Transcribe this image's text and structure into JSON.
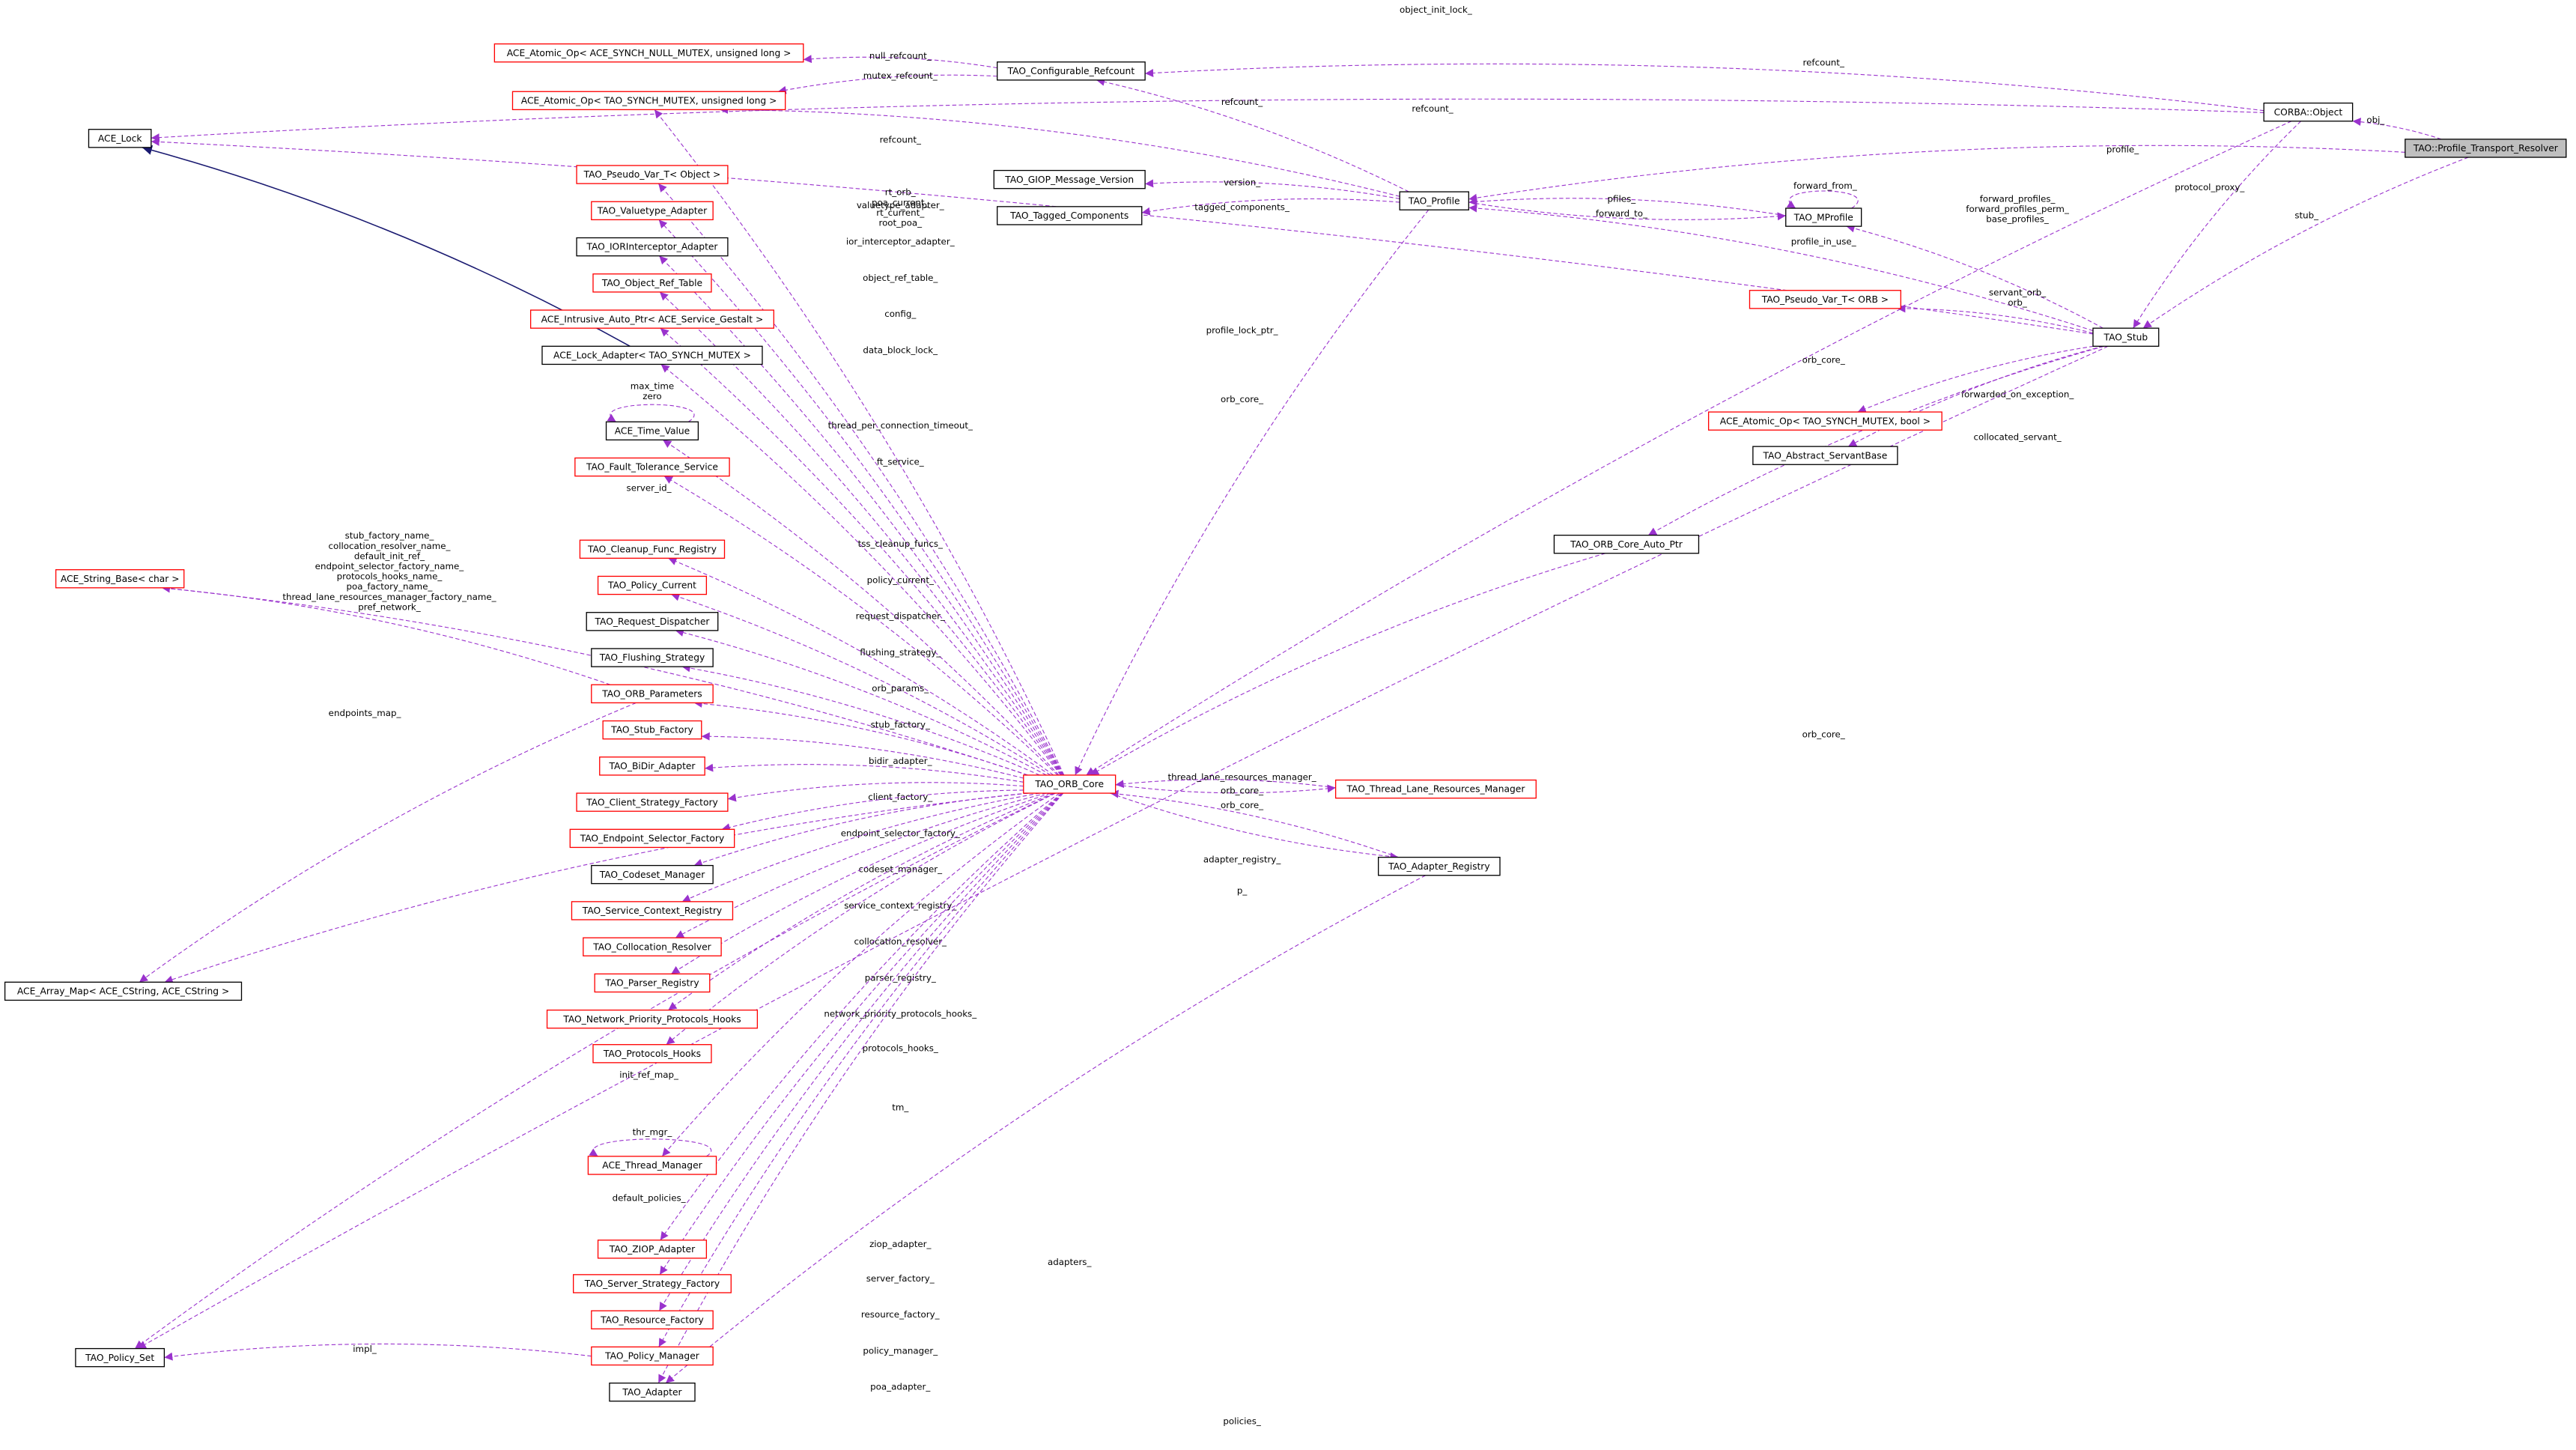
{
  "nodes": [
    {
      "label": "TAO::Profile_Transport_Resolver",
      "border": "#000000",
      "fill": "#bfbfbf"
    },
    {
      "label": "CORBA::Object",
      "border": "#000000"
    },
    {
      "label": "TAO_Stub",
      "border": "#000000"
    },
    {
      "label": "TAO_Profile",
      "border": "#000000"
    },
    {
      "label": "TAO_MProfile",
      "border": "#000000"
    },
    {
      "label": "TAO_Configurable_Refcount",
      "border": "#000000"
    },
    {
      "label": "ACE_Atomic_Op< ACE_SYNCH_NULL_MUTEX, unsigned long >",
      "border": "#ff0000"
    },
    {
      "label": "ACE_Atomic_Op< TAO_SYNCH_MUTEX, unsigned long >",
      "border": "#ff0000"
    },
    {
      "label": "ACE_Lock",
      "border": "#000000"
    },
    {
      "label": "TAO_GIOP_Message_Version",
      "border": "#000000"
    },
    {
      "label": "TAO_Tagged_Components",
      "border": "#000000"
    },
    {
      "label": "TAO_Pseudo_Var_T< ORB >",
      "border": "#ff0000"
    },
    {
      "label": "ACE_Atomic_Op< TAO_SYNCH_MUTEX, bool >",
      "border": "#ff0000"
    },
    {
      "label": "TAO_Abstract_ServantBase",
      "border": "#000000"
    },
    {
      "label": "TAO_ORB_Core_Auto_Ptr",
      "border": "#000000"
    },
    {
      "label": "TAO_ORB_Core",
      "border": "#ff0000"
    },
    {
      "label": "TAO_Thread_Lane_Resources_Manager",
      "border": "#ff0000"
    },
    {
      "label": "TAO_Adapter_Registry",
      "border": "#000000"
    },
    {
      "label": "TAO_Pseudo_Var_T< Object >",
      "border": "#ff0000"
    },
    {
      "label": "TAO_Valuetype_Adapter",
      "border": "#ff0000"
    },
    {
      "label": "TAO_IORInterceptor_Adapter",
      "border": "#000000"
    },
    {
      "label": "TAO_Object_Ref_Table",
      "border": "#ff0000"
    },
    {
      "label": "ACE_Intrusive_Auto_Ptr< ACE_Service_Gestalt >",
      "border": "#ff0000"
    },
    {
      "label": "ACE_Lock_Adapter< TAO_SYNCH_MUTEX >",
      "border": "#000000"
    },
    {
      "label": "ACE_Time_Value",
      "border": "#000000"
    },
    {
      "label": "TAO_Fault_Tolerance_Service",
      "border": "#ff0000"
    },
    {
      "label": "TAO_Cleanup_Func_Registry",
      "border": "#ff0000"
    },
    {
      "label": "TAO_Policy_Current",
      "border": "#ff0000"
    },
    {
      "label": "TAO_Request_Dispatcher",
      "border": "#000000"
    },
    {
      "label": "TAO_Flushing_Strategy",
      "border": "#000000"
    },
    {
      "label": "TAO_ORB_Parameters",
      "border": "#ff0000"
    },
    {
      "label": "TAO_Stub_Factory",
      "border": "#ff0000"
    },
    {
      "label": "TAO_BiDir_Adapter",
      "border": "#ff0000"
    },
    {
      "label": "TAO_Client_Strategy_Factory",
      "border": "#ff0000"
    },
    {
      "label": "TAO_Endpoint_Selector_Factory",
      "border": "#ff0000"
    },
    {
      "label": "TAO_Codeset_Manager",
      "border": "#000000"
    },
    {
      "label": "TAO_Service_Context_Registry",
      "border": "#ff0000"
    },
    {
      "label": "TAO_Collocation_Resolver",
      "border": "#ff0000"
    },
    {
      "label": "TAO_Parser_Registry",
      "border": "#ff0000"
    },
    {
      "label": "TAO_Network_Priority_Protocols_Hooks",
      "border": "#ff0000"
    },
    {
      "label": "TAO_Protocols_Hooks",
      "border": "#ff0000"
    },
    {
      "label": "ACE_Thread_Manager",
      "border": "#ff0000"
    },
    {
      "label": "TAO_ZIOP_Adapter",
      "border": "#ff0000"
    },
    {
      "label": "TAO_Server_Strategy_Factory",
      "border": "#ff0000"
    },
    {
      "label": "TAO_Resource_Factory",
      "border": "#ff0000"
    },
    {
      "label": "TAO_Policy_Manager",
      "border": "#ff0000"
    },
    {
      "label": "TAO_Adapter",
      "border": "#000000"
    },
    {
      "label": "ACE_String_Base< char >",
      "border": "#ff0000"
    },
    {
      "label": "ACE_Array_Map< ACE_CString, ACE_CString >",
      "border": "#000000"
    },
    {
      "label": "TAO_Policy_Set",
      "border": "#000000"
    }
  ],
  "edge_color": "#9a32cd",
  "inheritance_color": "#191970",
  "edges": [
    {
      "from": 0,
      "to": 1,
      "label": [
        "obj_"
      ]
    },
    {
      "from": 0,
      "to": 3,
      "label": [
        "profile_"
      ]
    },
    {
      "from": 0,
      "to": 2,
      "label": [
        "stub_"
      ]
    },
    {
      "from": 1,
      "to": 8,
      "label": [
        "object_init_lock_"
      ]
    },
    {
      "from": 1,
      "to": 5,
      "label": [
        "refcount_"
      ]
    },
    {
      "from": 1,
      "to": 2,
      "label": [
        "protocol_proxy_"
      ]
    },
    {
      "from": 1,
      "to": 15,
      "label": [
        "orb_core_"
      ]
    },
    {
      "from": 5,
      "to": 6,
      "label": [
        "null_refcount_"
      ]
    },
    {
      "from": 5,
      "to": 7,
      "label": [
        "mutex_refcount_"
      ]
    },
    {
      "from": 3,
      "to": 5,
      "label": [
        "refcount_"
      ]
    },
    {
      "from": 3,
      "to": 7,
      "label": [
        "refcount_"
      ]
    },
    {
      "from": 3,
      "to": 9,
      "label": [
        "version_"
      ]
    },
    {
      "from": 3,
      "to": 10,
      "label": [
        "tagged_components_"
      ]
    },
    {
      "from": 3,
      "to": 4,
      "label": [
        "forward_to_"
      ]
    },
    {
      "from": 4,
      "to": 3,
      "label": [
        "pfiles_"
      ]
    },
    {
      "from": 4,
      "to": 4,
      "label": [
        "forward_from_"
      ]
    },
    {
      "from": 3,
      "to": 15,
      "label": [
        "orb_core_"
      ]
    },
    {
      "from": 2,
      "to": 3,
      "label": [
        "profile_in_use_"
      ]
    },
    {
      "from": 2,
      "to": 4,
      "label": [
        "forward_profiles_",
        "forward_profiles_perm_",
        "base_profiles_"
      ]
    },
    {
      "from": 2,
      "to": 11,
      "label": [
        "servant_orb_",
        "orb_"
      ]
    },
    {
      "from": 2,
      "to": 8,
      "label": [
        "profile_lock_ptr_"
      ]
    },
    {
      "from": 2,
      "to": 14,
      "label": [
        "orb_core_"
      ]
    },
    {
      "from": 2,
      "to": 12,
      "label": [
        "forwarded_on_exception_"
      ]
    },
    {
      "from": 2,
      "to": 13,
      "label": [
        "collocated_servant_"
      ]
    },
    {
      "from": 2,
      "to": 49,
      "label": [
        "policies_"
      ]
    },
    {
      "from": 14,
      "to": 15,
      "label": [
        "p_"
      ]
    },
    {
      "from": 15,
      "to": 7,
      "label": [
        "refcount_"
      ]
    },
    {
      "from": 15,
      "to": 18,
      "label": [
        "rt_orb_",
        "poa_current_",
        "rt_current_",
        "root_poa_"
      ]
    },
    {
      "from": 15,
      "to": 19,
      "label": [
        "valuetype_adapter_"
      ]
    },
    {
      "from": 15,
      "to": 20,
      "label": [
        "ior_interceptor_adapter_"
      ]
    },
    {
      "from": 15,
      "to": 21,
      "label": [
        "object_ref_table_"
      ]
    },
    {
      "from": 15,
      "to": 22,
      "label": [
        "config_"
      ]
    },
    {
      "from": 15,
      "to": 23,
      "label": [
        "data_block_lock_"
      ]
    },
    {
      "from": 15,
      "to": 24,
      "label": [
        "thread_per_connection_timeout_"
      ]
    },
    {
      "from": 15,
      "to": 25,
      "label": [
        "ft_service_"
      ]
    },
    {
      "from": 15,
      "to": 47,
      "label": [
        "server_id_"
      ]
    },
    {
      "from": 15,
      "to": 26,
      "label": [
        "tss_cleanup_funcs_"
      ]
    },
    {
      "from": 15,
      "to": 27,
      "label": [
        "policy_current_"
      ]
    },
    {
      "from": 15,
      "to": 28,
      "label": [
        "request_dispatcher_"
      ]
    },
    {
      "from": 15,
      "to": 29,
      "label": [
        "flushing_strategy_"
      ]
    },
    {
      "from": 15,
      "to": 30,
      "label": [
        "orb_params_"
      ]
    },
    {
      "from": 15,
      "to": 31,
      "label": [
        "stub_factory_"
      ]
    },
    {
      "from": 15,
      "to": 32,
      "label": [
        "bidir_adapter_"
      ]
    },
    {
      "from": 15,
      "to": 33,
      "label": [
        "client_factory_"
      ]
    },
    {
      "from": 15,
      "to": 34,
      "label": [
        "endpoint_selector_factory_"
      ]
    },
    {
      "from": 15,
      "to": 35,
      "label": [
        "codeset_manager_"
      ]
    },
    {
      "from": 15,
      "to": 36,
      "label": [
        "service_context_registry_"
      ]
    },
    {
      "from": 15,
      "to": 37,
      "label": [
        "collocation_resolver_"
      ]
    },
    {
      "from": 15,
      "to": 38,
      "label": [
        "parser_registry_"
      ]
    },
    {
      "from": 15,
      "to": 39,
      "label": [
        "network_priority_protocols_hooks_"
      ]
    },
    {
      "from": 15,
      "to": 40,
      "label": [
        "protocols_hooks_"
      ]
    },
    {
      "from": 15,
      "to": 48,
      "label": [
        "init_ref_map_"
      ]
    },
    {
      "from": 15,
      "to": 41,
      "label": [
        "tm_"
      ]
    },
    {
      "from": 15,
      "to": 49,
      "label": [
        "default_policies_"
      ]
    },
    {
      "from": 15,
      "to": 42,
      "label": [
        "ziop_adapter_"
      ]
    },
    {
      "from": 15,
      "to": 43,
      "label": [
        "server_factory_"
      ]
    },
    {
      "from": 15,
      "to": 44,
      "label": [
        "resource_factory_"
      ]
    },
    {
      "from": 15,
      "to": 45,
      "label": [
        "policy_manager_"
      ]
    },
    {
      "from": 15,
      "to": 46,
      "label": [
        "poa_adapter_"
      ]
    },
    {
      "from": 15,
      "to": 16,
      "label": [
        "thread_lane_resources_manager_"
      ]
    },
    {
      "from": 16,
      "to": 15,
      "label": [
        "orb_core_"
      ]
    },
    {
      "from": 17,
      "to": 15,
      "label": [
        "orb_core_"
      ]
    },
    {
      "from": 15,
      "to": 17,
      "label": [
        "adapter_registry_"
      ]
    },
    {
      "from": 17,
      "to": 46,
      "label": [
        "adapters_"
      ]
    },
    {
      "from": 24,
      "to": 24,
      "label": [
        "max_time",
        "zero"
      ]
    },
    {
      "from": 41,
      "to": 41,
      "label": [
        "thr_mgr_"
      ]
    },
    {
      "from": 30,
      "to": 47,
      "label": [
        "stub_factory_name_",
        "collocation_resolver_name_",
        "default_init_ref_",
        "endpoint_selector_factory_name_",
        "protocols_hooks_name_",
        "poa_factory_name_",
        "thread_lane_resources_manager_factory_name_",
        "pref_network_"
      ]
    },
    {
      "from": 30,
      "to": 48,
      "label": [
        "endpoints_map_"
      ]
    },
    {
      "from": 45,
      "to": 49,
      "label": [
        "impl_"
      ]
    },
    {
      "from": 23,
      "to": 8,
      "kind": "inheritance"
    }
  ]
}
